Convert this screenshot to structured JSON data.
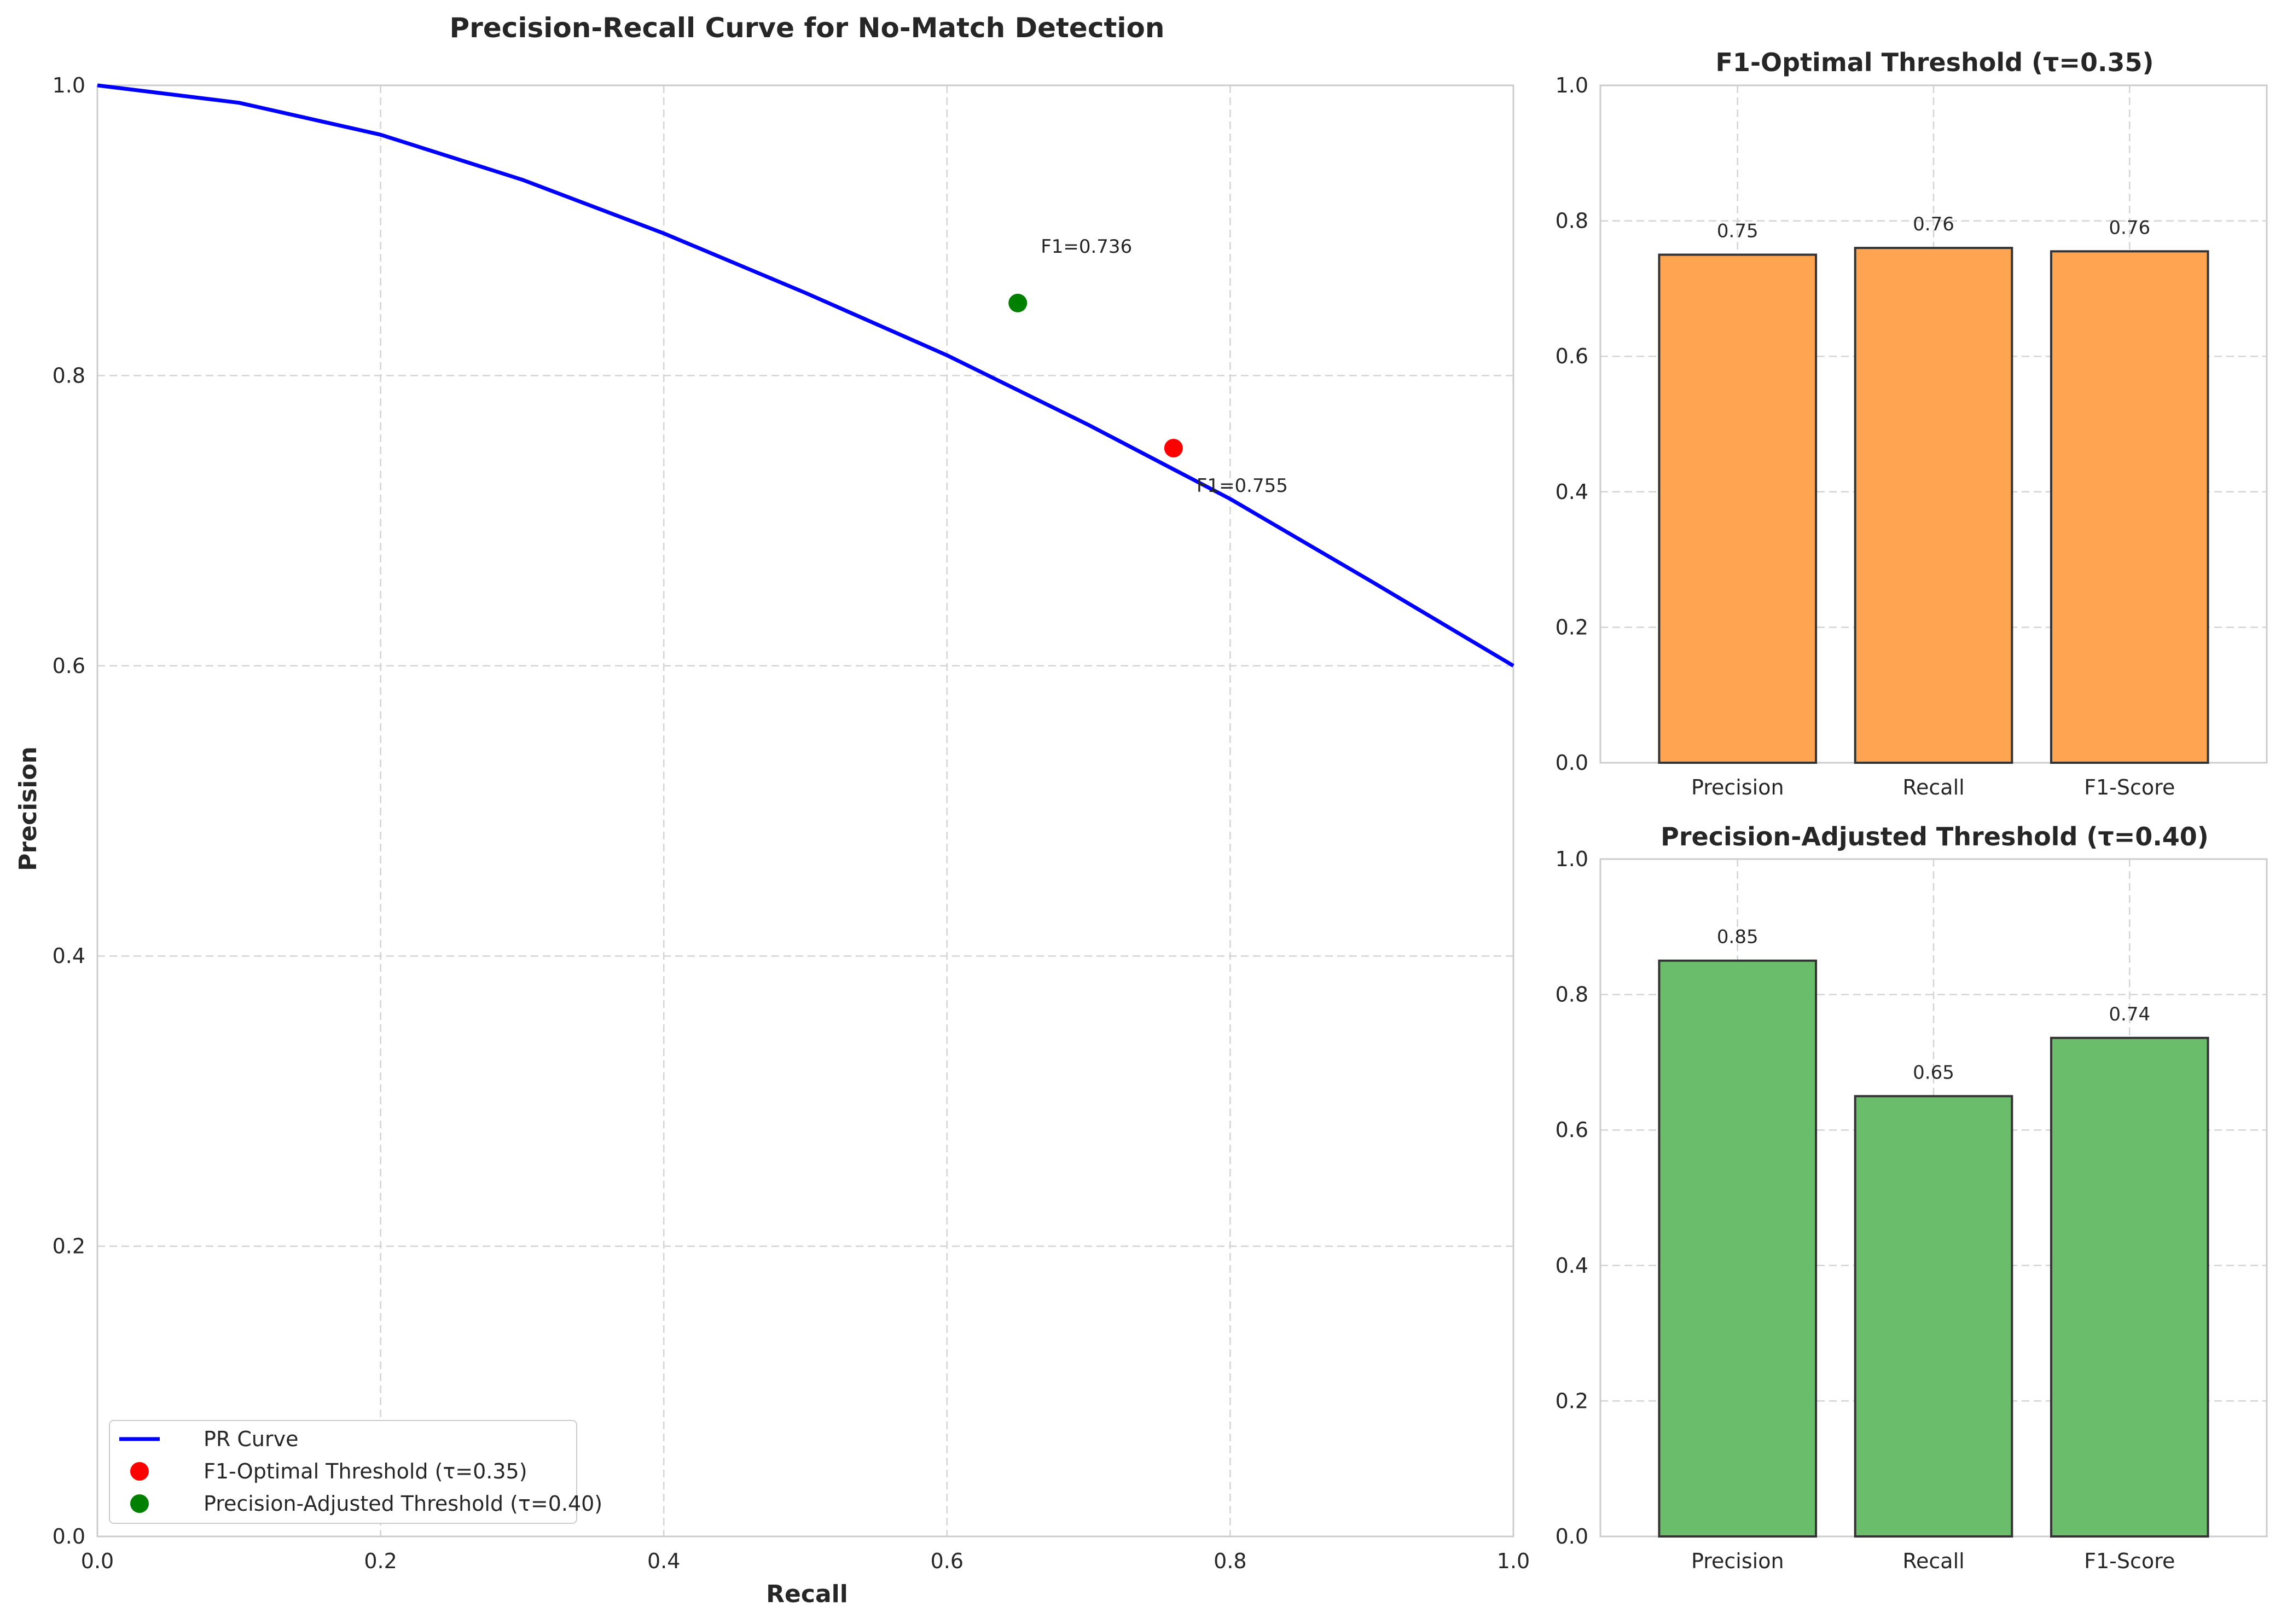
{
  "chart_data": [
    {
      "type": "line",
      "title": "Precision-Recall Curve for No-Match Detection",
      "xlabel": "Recall",
      "ylabel": "Precision",
      "xlim": [
        0,
        1
      ],
      "ylim": [
        0,
        1
      ],
      "xticks": [
        "0.0",
        "0.2",
        "0.4",
        "0.6",
        "0.8",
        "1.0"
      ],
      "yticks": [
        "0.0",
        "0.2",
        "0.4",
        "0.6",
        "0.8",
        "1.0"
      ],
      "grid": true,
      "legend_position": "lower-left",
      "series": [
        {
          "name": "PR Curve",
          "color": "#0000ff",
          "x": [
            0.0,
            0.1,
            0.2,
            0.3,
            0.4,
            0.5,
            0.6,
            0.7,
            0.8,
            0.9,
            1.0
          ],
          "y": [
            1.0,
            0.988,
            0.966,
            0.935,
            0.898,
            0.857,
            0.814,
            0.766,
            0.715,
            0.658,
            0.6
          ]
        }
      ],
      "points": [
        {
          "name": "F1-Optimal Threshold (τ=0.35)",
          "color": "#ff0000",
          "x": 0.76,
          "y": 0.75,
          "annotation": "F1=0.755"
        },
        {
          "name": "Precision-Adjusted Threshold (τ=0.40)",
          "color": "#008000",
          "x": 0.65,
          "y": 0.85,
          "annotation": "F1=0.736"
        }
      ]
    },
    {
      "type": "bar",
      "title": "F1-Optimal Threshold (τ=0.35)",
      "categories": [
        "Precision",
        "Recall",
        "F1-Score"
      ],
      "values": [
        0.75,
        0.76,
        0.755
      ],
      "labels": [
        "0.75",
        "0.76",
        "0.76"
      ],
      "ylim": [
        0,
        1
      ],
      "yticks": [
        "0.0",
        "0.2",
        "0.4",
        "0.6",
        "0.8",
        "1.0"
      ],
      "color": "#ffa451",
      "grid": true
    },
    {
      "type": "bar",
      "title": "Precision-Adjusted Threshold (τ=0.40)",
      "categories": [
        "Precision",
        "Recall",
        "F1-Score"
      ],
      "values": [
        0.85,
        0.65,
        0.736
      ],
      "labels": [
        "0.85",
        "0.65",
        "0.74"
      ],
      "ylim": [
        0,
        1
      ],
      "yticks": [
        "0.0",
        "0.2",
        "0.4",
        "0.6",
        "0.8",
        "1.0"
      ],
      "color": "#6abd6a",
      "grid": true
    }
  ]
}
